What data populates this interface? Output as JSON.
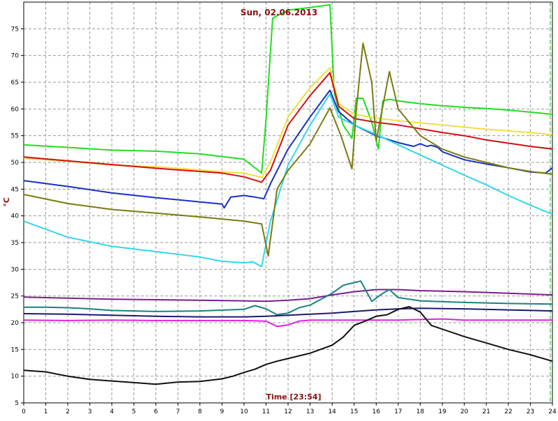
{
  "chart_data": {
    "type": "line",
    "title": "Sun, 02.06.2013",
    "xlabel": "Time [23:54]",
    "ylabel": "°C",
    "xlim": [
      0,
      24
    ],
    "ylim": [
      5,
      80
    ],
    "xticks": [
      0,
      1,
      2,
      3,
      4,
      5,
      6,
      7,
      8,
      9,
      10,
      11,
      12,
      13,
      14,
      15,
      16,
      17,
      18,
      19,
      20,
      21,
      22,
      23,
      24
    ],
    "yticks": [
      5,
      10,
      15,
      20,
      25,
      30,
      35,
      40,
      45,
      50,
      55,
      60,
      65,
      70,
      75
    ],
    "grid": true,
    "marker_x": 24,
    "series": [
      {
        "color": "#22dd22",
        "x": [
          0,
          2,
          4,
          6,
          8,
          9,
          10,
          10.8,
          11.0,
          11.3,
          12,
          13,
          13.9,
          14.1,
          14.5,
          14.9,
          15.1,
          15.4,
          15.8,
          16.1,
          16.3,
          16.6,
          17,
          18,
          19,
          20,
          21,
          22,
          23,
          24
        ],
        "values": [
          53.3,
          52.8,
          52.3,
          52.1,
          51.6,
          51.1,
          50.6,
          48,
          58,
          77,
          78.5,
          79,
          79.5,
          63,
          57,
          54.5,
          62,
          62,
          57.5,
          52.5,
          61.5,
          61.8,
          61.5,
          61,
          60.6,
          60.3,
          60.1,
          59.8,
          59.4,
          59
        ]
      },
      {
        "color": "#f0e040",
        "x": [
          0,
          2,
          4,
          6,
          8,
          9,
          10,
          10.8,
          11.2,
          12,
          13,
          13.9,
          14.3,
          15,
          16,
          17,
          18,
          19,
          20,
          21,
          22,
          23,
          24
        ],
        "values": [
          50.8,
          50.2,
          49.5,
          49.2,
          48.6,
          48.2,
          48,
          47.2,
          50,
          58.5,
          64,
          67.7,
          61,
          59,
          58.3,
          57.8,
          57.4,
          57,
          56.6,
          56.2,
          55.9,
          55.6,
          55.2
        ]
      },
      {
        "color": "#d01010",
        "x": [
          0,
          2,
          4,
          6,
          8,
          9,
          10,
          10.8,
          11.2,
          12,
          13,
          13.9,
          14.3,
          15,
          16,
          17,
          18,
          19,
          20,
          21,
          22,
          23,
          24
        ],
        "values": [
          51,
          50.3,
          49.6,
          48.9,
          48.3,
          48,
          47.3,
          46.3,
          48.5,
          57,
          62.5,
          66.8,
          60.5,
          58.2,
          57.5,
          57,
          56.3,
          55.6,
          55,
          54.2,
          53.6,
          53,
          52.5
        ]
      },
      {
        "color": "#1830c0",
        "x": [
          0,
          2,
          4,
          6,
          8,
          9,
          9.1,
          9.4,
          10,
          10.5,
          10.9,
          11.2,
          12,
          13,
          13.9,
          14.3,
          15,
          16,
          17,
          17.7,
          18,
          18.3,
          18.5,
          18.8,
          19,
          20,
          21,
          22,
          23,
          23.7,
          24
        ],
        "values": [
          46.6,
          45.5,
          44.3,
          43.4,
          42.6,
          42.2,
          41.5,
          43.5,
          43.8,
          43.5,
          43.2,
          46,
          52.5,
          58.5,
          63.5,
          59.5,
          57,
          55,
          53.7,
          53,
          53.5,
          53,
          53.2,
          52.8,
          52,
          50.5,
          49.7,
          49,
          48.2,
          48,
          49
        ]
      },
      {
        "color": "#30d8e8",
        "x": [
          0,
          2,
          4,
          6,
          8,
          9,
          10,
          10.4,
          10.8,
          11.2,
          12,
          13,
          13.9,
          14.3,
          15,
          16,
          17,
          18,
          19,
          20,
          21,
          22,
          23,
          24
        ],
        "values": [
          39,
          36,
          34.3,
          33.3,
          32.3,
          31.5,
          31.2,
          31.4,
          30.5,
          39,
          49.5,
          57,
          62.8,
          58.5,
          57,
          55.2,
          53.3,
          51.4,
          49.5,
          47.6,
          45.8,
          43.8,
          42,
          40.3
        ]
      },
      {
        "color": "#7a7a10",
        "x": [
          0,
          2,
          4,
          6,
          8,
          9,
          10,
          10.8,
          11.1,
          11.5,
          12,
          13,
          13.9,
          14.4,
          14.9,
          15.1,
          15.4,
          15.8,
          16,
          16.6,
          17,
          17.5,
          18,
          19,
          20,
          21,
          22,
          23,
          24
        ],
        "values": [
          44,
          42.3,
          41.2,
          40.5,
          39.8,
          39.4,
          39,
          38.5,
          32.5,
          45,
          48.5,
          53.5,
          60.2,
          55,
          48.8,
          60,
          72.3,
          65,
          54,
          67,
          60,
          57.5,
          55,
          52.5,
          51,
          50,
          49,
          48.3,
          47.8
        ]
      },
      {
        "color": "#7a1e8c",
        "x": [
          0,
          2,
          4,
          6,
          8,
          10,
          11,
          12,
          13,
          14,
          15,
          16,
          17,
          18,
          20,
          22,
          24
        ],
        "values": [
          24.8,
          24.6,
          24.4,
          24.3,
          24.2,
          24.1,
          24,
          24.2,
          24.5,
          25.2,
          25.8,
          26.2,
          26.2,
          26,
          25.8,
          25.5,
          25.2
        ]
      },
      {
        "color": "#1a8080",
        "x": [
          0,
          1,
          2,
          3,
          4,
          6,
          8,
          10,
          10.5,
          11,
          11.5,
          12,
          12.5,
          13,
          14,
          14.5,
          15,
          15.3,
          15.8,
          16.3,
          16.6,
          17,
          17.5,
          18,
          20,
          22,
          24
        ],
        "values": [
          22.9,
          22.9,
          22.8,
          22.6,
          22.3,
          22.1,
          22.2,
          22.5,
          23.2,
          22.6,
          21.5,
          21.8,
          22.8,
          23.3,
          25.5,
          27,
          27.5,
          27.8,
          24,
          25.5,
          26.2,
          24.7,
          24.4,
          24.1,
          23.8,
          23.6,
          23.5
        ]
      },
      {
        "color": "#1a1a70",
        "x": [
          0,
          2,
          4,
          6,
          8,
          10,
          11,
          12,
          13,
          14,
          15,
          16,
          17,
          18,
          20,
          22,
          24
        ],
        "values": [
          21.7,
          21.6,
          21.4,
          21.2,
          21.1,
          21.1,
          21.2,
          21.4,
          21.6,
          21.8,
          22.1,
          22.4,
          22.6,
          22.7,
          22.6,
          22.4,
          22.2
        ]
      },
      {
        "color": "#e020e0",
        "x": [
          0,
          2,
          4,
          6,
          8,
          10,
          11,
          11.5,
          12,
          12.5,
          13,
          14,
          15,
          16,
          17,
          18,
          19,
          20,
          22,
          24
        ],
        "values": [
          20.5,
          20.4,
          20.5,
          20.4,
          20.4,
          20.4,
          20.3,
          19.3,
          19.6,
          20.3,
          20.5,
          20.5,
          20.5,
          20.5,
          20.5,
          20.6,
          20.7,
          20.5,
          20.5,
          20.5
        ]
      },
      {
        "color": "#101010",
        "x": [
          0,
          1,
          2,
          3,
          4,
          5,
          6,
          7,
          8,
          9,
          9.5,
          10,
          10.5,
          11,
          11.5,
          12,
          13,
          14,
          14.5,
          15,
          15.5,
          16,
          16.5,
          17,
          17.5,
          18,
          18.5,
          19,
          20,
          21,
          22,
          23,
          24
        ],
        "values": [
          11.1,
          10.8,
          10,
          9.4,
          9.1,
          8.8,
          8.5,
          8.9,
          9,
          9.5,
          10,
          10.7,
          11.3,
          12.2,
          12.8,
          13.3,
          14.3,
          15.8,
          17.3,
          19.5,
          20.3,
          21.2,
          21.5,
          22.5,
          23,
          22,
          19.5,
          18.8,
          17.4,
          16.2,
          15,
          14,
          12.8
        ]
      }
    ]
  }
}
